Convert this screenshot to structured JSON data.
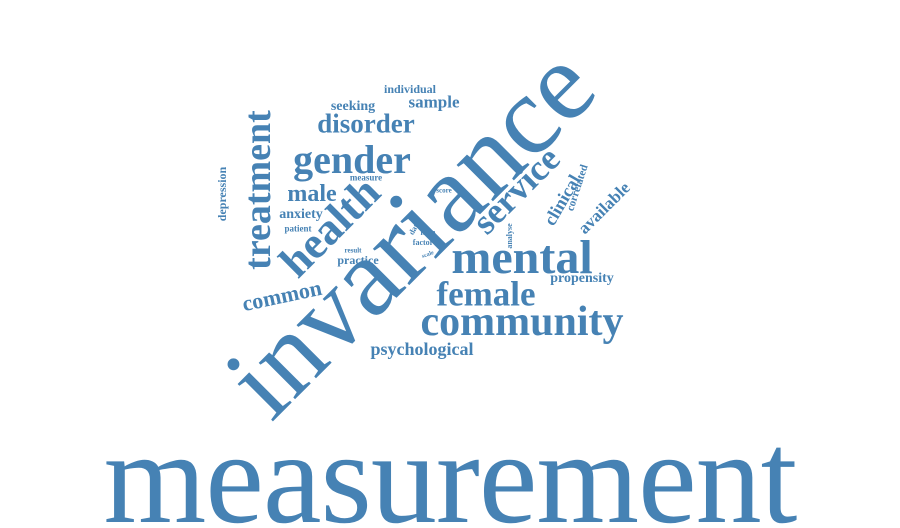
{
  "word_color": "#4682B4",
  "background": "#FFFFFF",
  "words": {
    "measurement": "measurement",
    "invariance": "invariance",
    "mental": "mental",
    "community": "community",
    "female": "female",
    "health": "health",
    "treatment": "treatment",
    "gender": "gender",
    "service": "service",
    "disorder": "disorder",
    "male": "male",
    "common": "common",
    "psychological": "psychological",
    "available": "available",
    "clinical": "clinical",
    "correlated": "correlated",
    "propensity": "propensity",
    "anxiety": "anxiety",
    "depression": "depression",
    "sample": "sample",
    "seeking": "seeking",
    "individual": "individual",
    "practice": "practice",
    "patient": "patient",
    "measure": "measure",
    "score": "score",
    "analyse": "analyse",
    "data": "data",
    "item": "item",
    "factor": "factor",
    "scale": "scale",
    "result": "result"
  }
}
